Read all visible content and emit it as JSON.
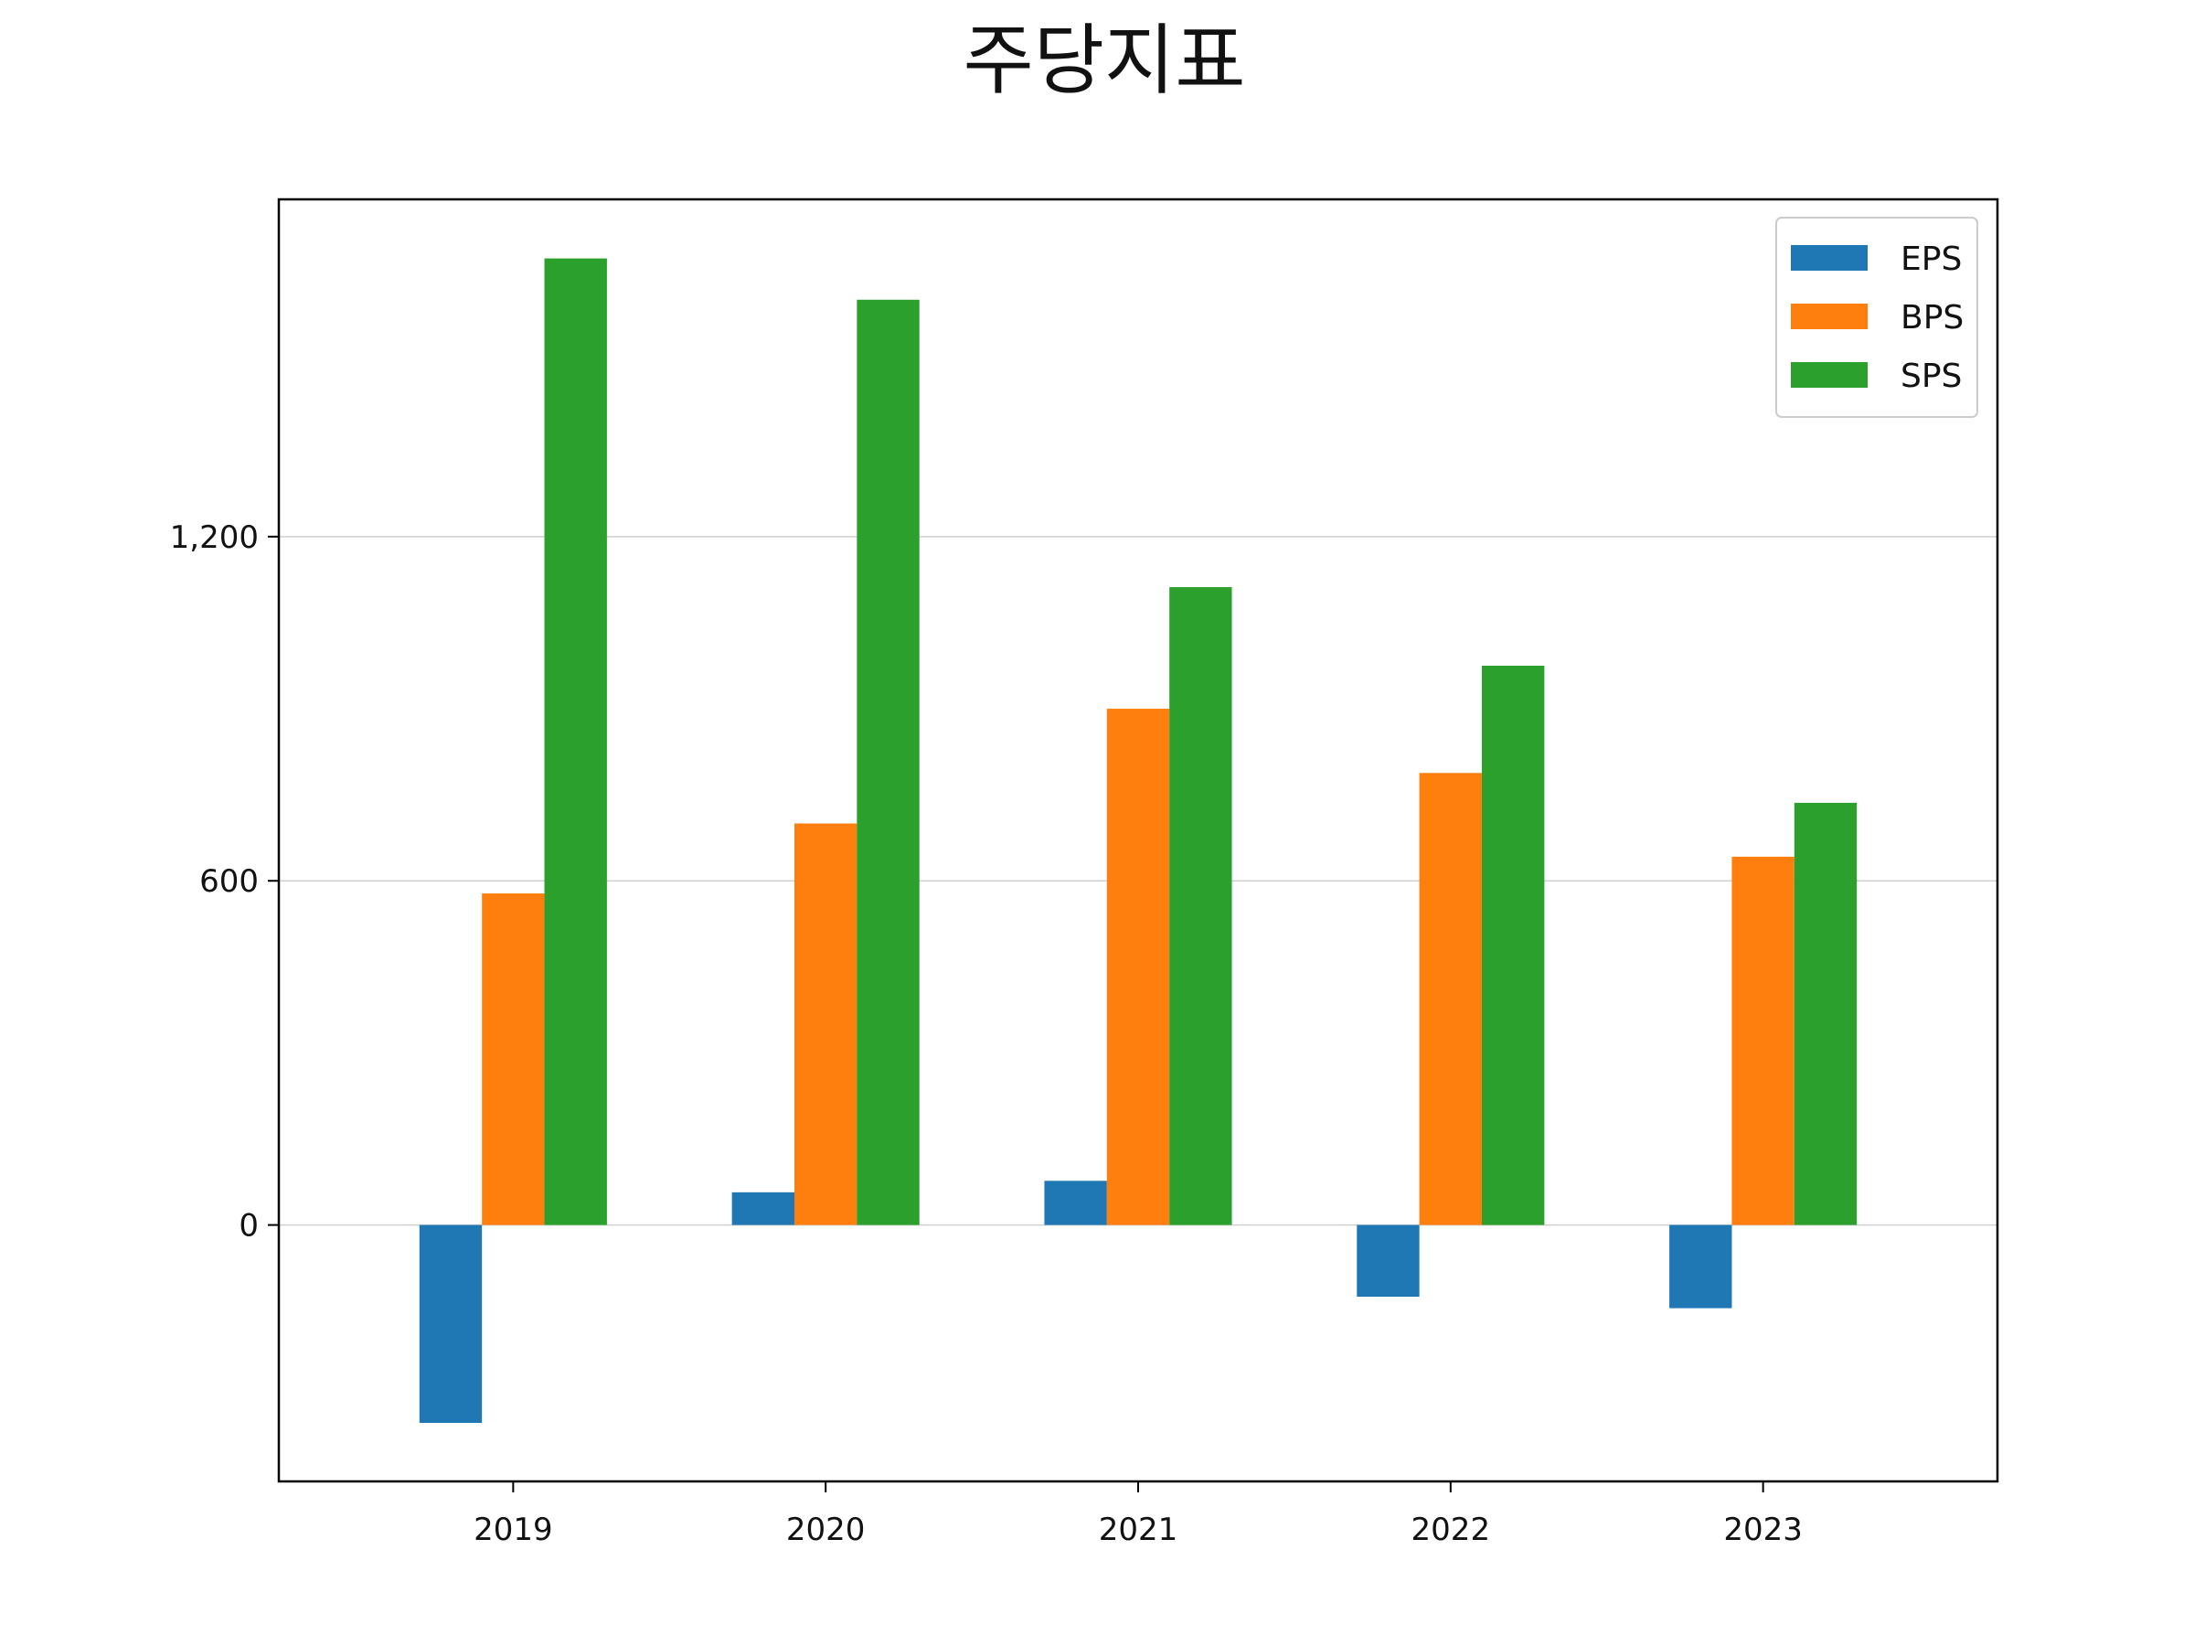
{
  "chart_data": {
    "type": "bar",
    "title": "주당지표",
    "xlabel": "",
    "ylabel": "",
    "categories": [
      "2019",
      "2020",
      "2021",
      "2022",
      "2023"
    ],
    "series": [
      {
        "name": "EPS",
        "color": "#1f77b4",
        "values": [
          -345,
          57,
          77,
          -125,
          -145
        ]
      },
      {
        "name": "BPS",
        "color": "#ff7f0e",
        "values": [
          578,
          700,
          900,
          788,
          642
        ]
      },
      {
        "name": "SPS",
        "color": "#2ca02c",
        "values": [
          1685,
          1613,
          1112,
          975,
          736
        ]
      }
    ],
    "y_ticks": [
      {
        "value": 0,
        "label": "0"
      },
      {
        "value": 600,
        "label": "600"
      },
      {
        "value": 1200,
        "label": "1,200"
      }
    ],
    "ylim": [
      -447,
      1788
    ],
    "grid": {
      "y": true,
      "x": false
    },
    "legend_position": "top-right"
  }
}
